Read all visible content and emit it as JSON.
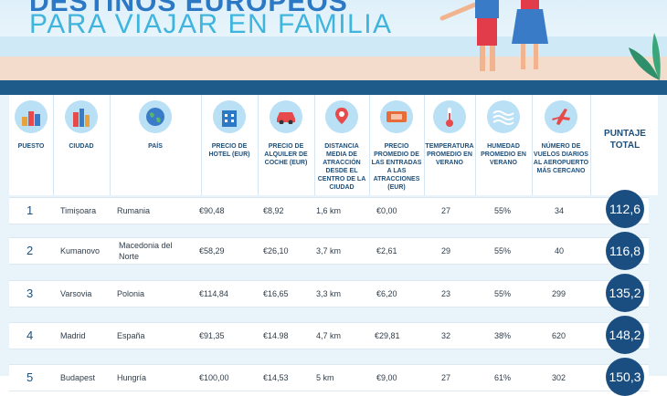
{
  "banner": {
    "title_line1": "DESTINOS EUROPEOS",
    "title_line2": "PARA VIAJAR EN FAMILIA"
  },
  "colors": {
    "navy": "#1b4e80",
    "header_blue": "#1d4f7b",
    "icon_bg": "#b9e0f5",
    "light_blue": "#3fb5de"
  },
  "headers": {
    "puesto": "PUESTO",
    "ciudad": "CIUDAD",
    "pais": "PAÍS",
    "hotel": "PRECIO DE HOTEL (EUR)",
    "coche": "PRECIO DE ALQUILER DE COCHE (EUR)",
    "distancia": "DISTANCIA MEDIA DE ATRACCIÓN DESDE EL CENTRO DE LA CIUDAD",
    "entradas": "PRECIO PROMEDIO DE LAS ENTRADAS A LAS ATRACCIONES (EUR)",
    "temperatura": "TEMPERATURA PROMEDIO EN VERANO",
    "humedad": "HUMEDAD PROMEDIO EN VERANO",
    "vuelos": "NÚMERO DE VUELOS DIARIOS AL AEROPUERTO MÁS CERCANO",
    "total": "PUNTAJE TOTAL"
  },
  "icons": [
    "podium-icon",
    "city-icon",
    "globe-icon",
    "hotel-icon",
    "car-icon",
    "map-pin-route-icon",
    "ticket-icon",
    "thermometer-icon",
    "humidity-icon",
    "airplane-icon"
  ],
  "rows": [
    {
      "pos": "1",
      "ciudad": "Timișoara",
      "pais": "Rumania",
      "hotel": "€90,48",
      "coche": "€8,92",
      "distancia": "1,6 km",
      "entradas": "€0,00",
      "temp": "27",
      "humedad": "55%",
      "vuelos": "34",
      "total": "112,6"
    },
    {
      "pos": "2",
      "ciudad": "Kumanovo",
      "pais": "Macedonia del Norte",
      "hotel": "€58,29",
      "coche": "€26,10",
      "distancia": "3,7 km",
      "entradas": "€2,61",
      "temp": "29",
      "humedad": "55%",
      "vuelos": "40",
      "total": "116,8"
    },
    {
      "pos": "3",
      "ciudad": "Varsovia",
      "pais": "Polonia",
      "hotel": "€114,84",
      "coche": "€16,65",
      "distancia": "3,3 km",
      "entradas": "€6,20",
      "temp": "23",
      "humedad": "55%",
      "vuelos": "299",
      "total": "135,2"
    },
    {
      "pos": "4",
      "ciudad": "Madrid",
      "pais": "España",
      "hotel": "€91,35",
      "coche": "€14.98",
      "distancia": "4,7 km",
      "entradas": "€29,81",
      "temp": "32",
      "humedad": "38%",
      "vuelos": "620",
      "total": "148,2"
    },
    {
      "pos": "5",
      "ciudad": "Budapest",
      "pais": "Hungría",
      "hotel": "€100,00",
      "coche": "€14,53",
      "distancia": "5 km",
      "entradas": "€9,00",
      "temp": "27",
      "humedad": "61%",
      "vuelos": "302",
      "total": "150,3"
    }
  ]
}
